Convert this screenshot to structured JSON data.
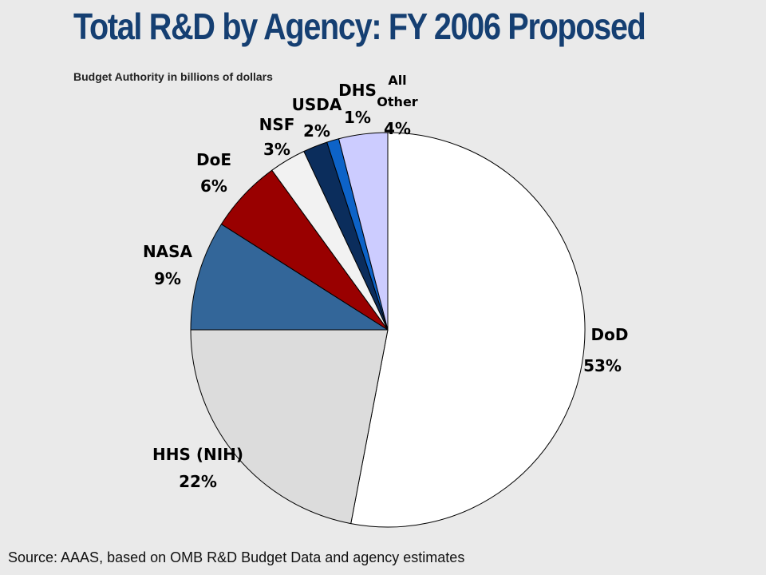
{
  "chart_data": {
    "type": "pie",
    "title": "Total R&D by Agency: FY 2006 Proposed",
    "subtitle": "Budget Authority in billions of dollars",
    "source": "Source:  AAAS, based on OMB R&D Budget Data and agency estimates",
    "slices": [
      {
        "label": "DoD",
        "value": 53,
        "pct_text": "53%",
        "color": "#ffffff"
      },
      {
        "label": "HHS (NIH)",
        "value": 22,
        "pct_text": "22%",
        "color": "#dcdcdc"
      },
      {
        "label": "NASA",
        "value": 9,
        "pct_text": "9%",
        "color": "#336699"
      },
      {
        "label": "DoE",
        "value": 6,
        "pct_text": "6%",
        "color": "#990000"
      },
      {
        "label": "NSF",
        "value": 3,
        "pct_text": "3%",
        "color": "#f2f2f2"
      },
      {
        "label": "USDA",
        "value": 2,
        "pct_text": "2%",
        "color": "#0b2d5c"
      },
      {
        "label": "DHS",
        "value": 1,
        "pct_text": "1%",
        "color": "#0d63c8"
      },
      {
        "label": "All Other",
        "value": 4,
        "pct_text": "4%",
        "color": "#ccccff"
      }
    ]
  }
}
